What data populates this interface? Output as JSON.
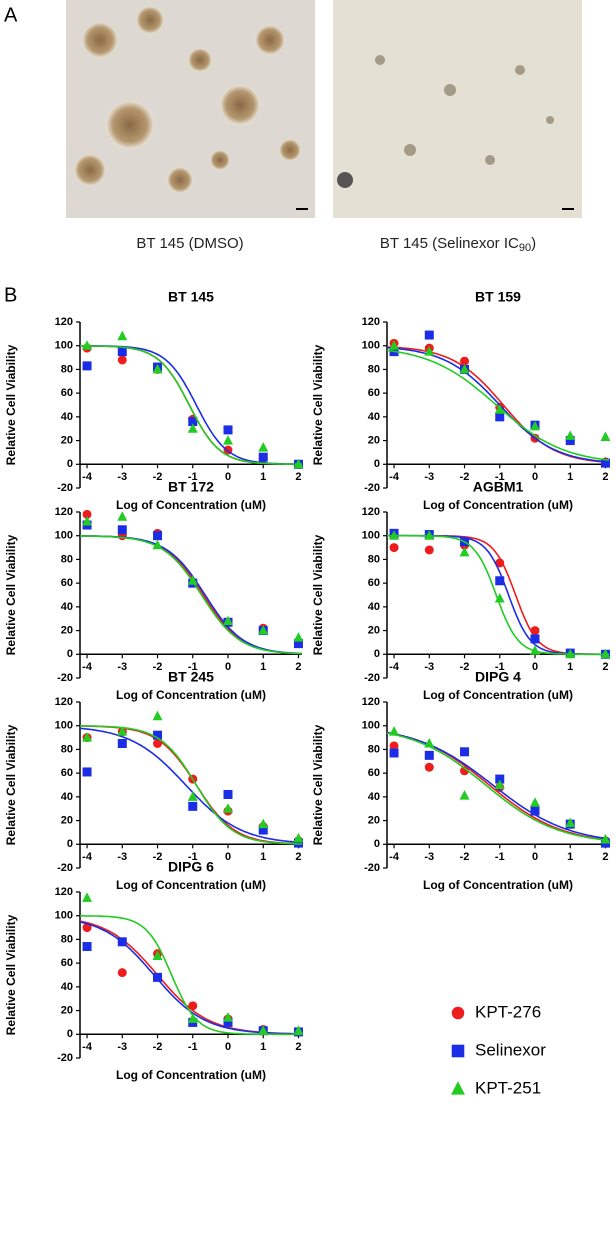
{
  "figure": {
    "panel_a": {
      "label": "A",
      "captions": [
        {
          "text": "BT 145 (DMSO)"
        },
        {
          "text": "BT 145 (Selinexor IC",
          "sub": "90",
          "after": ")"
        }
      ]
    },
    "panel_b": {
      "label": "B"
    },
    "legend": [
      {
        "name": "KPT-276",
        "color": "#ee1c1c",
        "marker": "circle"
      },
      {
        "name": "Selinexor",
        "color": "#1b2ee6",
        "marker": "square"
      },
      {
        "name": "KPT-251",
        "color": "#22cc22",
        "marker": "triangle"
      }
    ]
  },
  "chart_data": [
    {
      "type": "scatter",
      "title": "BT 145",
      "xlabel": "Log of Concentration (uM)",
      "ylabel": "Relative Cell Viability",
      "x": [
        -4,
        -3,
        -2,
        -1,
        0,
        1,
        2
      ],
      "xlim": [
        -4.2,
        2.1
      ],
      "xticks": [
        -4,
        -3,
        -2,
        -1,
        0,
        1,
        2
      ],
      "ylim": [
        -20,
        120
      ],
      "yticks": [
        -20,
        0,
        20,
        40,
        60,
        80,
        100,
        120
      ],
      "series": [
        {
          "values": [
            98,
            88,
            80,
            38,
            12,
            5,
            0
          ],
          "fit": {
            "top": 100,
            "bottom": 0,
            "log_ic50": -1.1,
            "hill": 1
          }
        },
        {
          "values": [
            83,
            95,
            82,
            36,
            29,
            6,
            0
          ],
          "fit": {
            "top": 100,
            "bottom": 0,
            "log_ic50": -0.9,
            "hill": 1
          }
        },
        {
          "values": [
            100,
            108,
            80,
            30,
            20,
            14,
            0
          ],
          "fit": {
            "top": 100,
            "bottom": 0,
            "log_ic50": -1.1,
            "hill": 1
          }
        }
      ]
    },
    {
      "type": "scatter",
      "title": "BT 159",
      "xlabel": "Log of Concentration (uM)",
      "ylabel": "Relative Cell Viability",
      "x": [
        -4,
        -3,
        -2,
        -1,
        0,
        1,
        2
      ],
      "xlim": [
        -4.2,
        2.1
      ],
      "xticks": [
        -4,
        -3,
        -2,
        -1,
        0,
        1,
        2
      ],
      "ylim": [
        -20,
        120
      ],
      "yticks": [
        -20,
        0,
        20,
        40,
        60,
        80,
        100,
        120
      ],
      "series": [
        {
          "values": [
            102,
            98,
            87,
            48,
            22,
            20,
            2
          ],
          "fit": {
            "top": 100,
            "bottom": 0,
            "log_ic50": -0.9,
            "hill": 0.6
          }
        },
        {
          "values": [
            95,
            109,
            80,
            40,
            33,
            20,
            1
          ],
          "fit": {
            "top": 100,
            "bottom": 0,
            "log_ic50": -1,
            "hill": 0.55
          }
        },
        {
          "values": [
            100,
            95,
            80,
            46,
            32,
            24,
            23
          ],
          "fit": {
            "top": 100,
            "bottom": 0,
            "log_ic50": -1.1,
            "hill": 0.45
          }
        }
      ]
    },
    {
      "type": "scatter",
      "title": "BT 172",
      "xlabel": "Log of Concentration (uM)",
      "ylabel": "Relative Cell Viability",
      "x": [
        -4,
        -3,
        -2,
        -1,
        0,
        1,
        2
      ],
      "xlim": [
        -4.2,
        2.1
      ],
      "xticks": [
        -4,
        -3,
        -2,
        -1,
        0,
        1,
        2
      ],
      "ylim": [
        -20,
        120
      ],
      "yticks": [
        -20,
        0,
        20,
        40,
        60,
        80,
        100,
        120
      ],
      "series": [
        {
          "values": [
            118,
            100,
            102,
            60,
            27,
            22,
            10
          ],
          "fit": {
            "top": 100,
            "bottom": 0,
            "log_ic50": -0.7,
            "hill": 0.8
          }
        },
        {
          "values": [
            109,
            105,
            100,
            60,
            27,
            20,
            9
          ],
          "fit": {
            "top": 100,
            "bottom": 0,
            "log_ic50": -0.65,
            "hill": 0.8
          }
        },
        {
          "values": [
            112,
            116,
            92,
            62,
            28,
            20,
            14
          ],
          "fit": {
            "top": 100,
            "bottom": 0,
            "log_ic50": -0.75,
            "hill": 0.8
          }
        }
      ]
    },
    {
      "type": "scatter",
      "title": "AGBM1",
      "xlabel": "Log of Concentration (uM)",
      "ylabel": "Relative Cell Viability",
      "x": [
        -4,
        -3,
        -2,
        -1,
        0,
        1,
        2
      ],
      "xlim": [
        -4.2,
        2.1
      ],
      "xticks": [
        -4,
        -3,
        -2,
        -1,
        0,
        1,
        2
      ],
      "ylim": [
        -20,
        120
      ],
      "yticks": [
        -20,
        0,
        20,
        40,
        60,
        80,
        100,
        120
      ],
      "series": [
        {
          "values": [
            90,
            88,
            92,
            77,
            20,
            1,
            0
          ],
          "fit": {
            "top": 100,
            "bottom": 0,
            "log_ic50": -0.55,
            "hill": 1.4
          }
        },
        {
          "values": [
            102,
            101,
            95,
            62,
            13,
            1,
            0
          ],
          "fit": {
            "top": 100,
            "bottom": 0,
            "log_ic50": -0.75,
            "hill": 1.4
          }
        },
        {
          "values": [
            100,
            100,
            86,
            47,
            3,
            0,
            0
          ],
          "fit": {
            "top": 100,
            "bottom": 0,
            "log_ic50": -1.1,
            "hill": 1.4
          }
        }
      ]
    },
    {
      "type": "scatter",
      "title": "BT 245",
      "xlabel": "Log of Concentration (uM)",
      "ylabel": "Relative Cell Viability",
      "x": [
        -4,
        -3,
        -2,
        -1,
        0,
        1,
        2
      ],
      "xlim": [
        -4.2,
        2.1
      ],
      "xticks": [
        -4,
        -3,
        -2,
        -1,
        0,
        1,
        2
      ],
      "ylim": [
        -20,
        120
      ],
      "yticks": [
        -20,
        0,
        20,
        40,
        60,
        80,
        100,
        120
      ],
      "series": [
        {
          "values": [
            90,
            95,
            85,
            55,
            28,
            15,
            3
          ],
          "fit": {
            "top": 100,
            "bottom": 0,
            "log_ic50": -0.9,
            "hill": 0.8
          }
        },
        {
          "values": [
            61,
            85,
            92,
            32,
            42,
            12,
            1
          ],
          "fit": {
            "top": 100,
            "bottom": 0,
            "log_ic50": -1.2,
            "hill": 0.55
          }
        },
        {
          "values": [
            90,
            95,
            108,
            40,
            30,
            17,
            5
          ],
          "fit": {
            "top": 100,
            "bottom": 0,
            "log_ic50": -0.9,
            "hill": 0.85
          }
        }
      ]
    },
    {
      "type": "scatter",
      "title": "DIPG 4",
      "xlabel": "Log of Concentration (uM)",
      "ylabel": "Relative Cell Viability",
      "x": [
        -4,
        -3,
        -2,
        -1,
        0,
        1,
        2
      ],
      "xlim": [
        -4.2,
        2.1
      ],
      "xticks": [
        -4,
        -3,
        -2,
        -1,
        0,
        1,
        2
      ],
      "ylim": [
        -20,
        120
      ],
      "yticks": [
        -20,
        0,
        20,
        40,
        60,
        80,
        100,
        120
      ],
      "series": [
        {
          "values": [
            83,
            65,
            62,
            48,
            30,
            17,
            3
          ],
          "fit": {
            "top": 100,
            "bottom": 0,
            "log_ic50": -1.3,
            "hill": 0.42
          }
        },
        {
          "values": [
            77,
            75,
            78,
            55,
            28,
            17,
            1
          ],
          "fit": {
            "top": 100,
            "bottom": 0,
            "log_ic50": -1.2,
            "hill": 0.4
          }
        },
        {
          "values": [
            95,
            85,
            41,
            50,
            35,
            18,
            4
          ],
          "fit": {
            "top": 100,
            "bottom": 0,
            "log_ic50": -1.4,
            "hill": 0.42
          }
        }
      ]
    },
    {
      "type": "scatter",
      "title": "DIPG 6",
      "xlabel": "Log of Concentration (uM)",
      "ylabel": "Relative Cell Viability",
      "x": [
        -4,
        -3,
        -2,
        -1,
        0,
        1,
        2
      ],
      "xlim": [
        -4.2,
        2.1
      ],
      "xticks": [
        -4,
        -3,
        -2,
        -1,
        0,
        1,
        2
      ],
      "ylim": [
        -20,
        120
      ],
      "yticks": [
        -20,
        0,
        20,
        40,
        60,
        80,
        100,
        120
      ],
      "series": [
        {
          "values": [
            90,
            52,
            68,
            24,
            13,
            4,
            2
          ],
          "fit": {
            "top": 100,
            "bottom": 0,
            "log_ic50": -2,
            "hill": 0.6
          }
        },
        {
          "values": [
            74,
            78,
            48,
            10,
            10,
            3,
            2
          ],
          "fit": {
            "top": 100,
            "bottom": 0,
            "log_ic50": -2.1,
            "hill": 0.6
          }
        },
        {
          "values": [
            115,
            null,
            66,
            13,
            14,
            3,
            3
          ],
          "fit": {
            "top": 100,
            "bottom": 0,
            "log_ic50": -1.6,
            "hill": 1.2
          }
        }
      ]
    }
  ]
}
